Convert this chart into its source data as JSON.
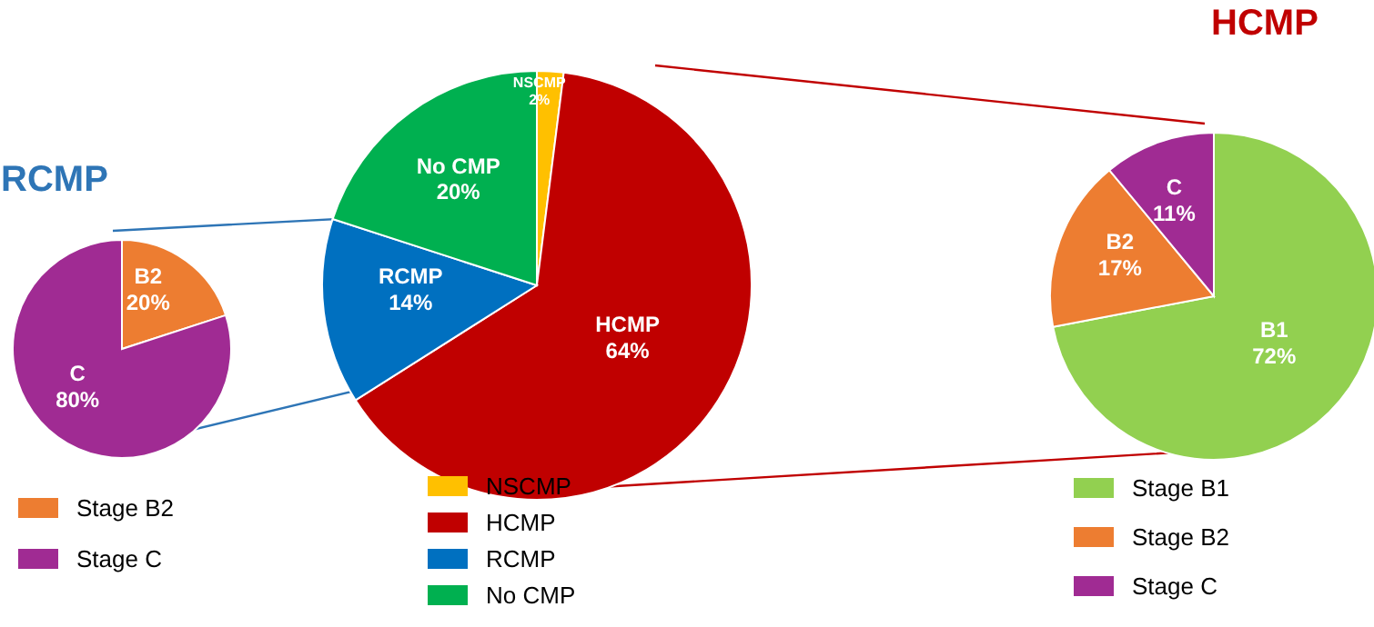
{
  "chart_data": [
    {
      "type": "pie",
      "title": "RCMP",
      "categories": [
        "Stage B2",
        "Stage C"
      ],
      "values": [
        20,
        80
      ],
      "colors": [
        "#ed7d31",
        "#a02b93"
      ],
      "value_labels": [
        "B2 20%",
        "C 80%"
      ],
      "legend": "bottom"
    },
    {
      "type": "pie",
      "categories": [
        "NSCMP",
        "HCMP",
        "RCMP",
        "No CMP"
      ],
      "values": [
        2,
        64,
        14,
        20
      ],
      "colors": [
        "#ffc000",
        "#c00000",
        "#0070c0",
        "#00b050"
      ],
      "value_labels": [
        "NSCMP 2%",
        "HCMP 64%",
        "RCMP 14%",
        "No CMP 20%"
      ],
      "legend": "bottom"
    },
    {
      "type": "pie",
      "title": "HCMP",
      "categories": [
        "Stage B1",
        "Stage B2",
        "Stage C"
      ],
      "values": [
        72,
        17,
        11
      ],
      "colors": [
        "#92d050",
        "#ed7d31",
        "#a02b93"
      ],
      "value_labels": [
        "B1 72%",
        "B2 17%",
        "C 11%"
      ],
      "legend": "bottom"
    }
  ]
}
